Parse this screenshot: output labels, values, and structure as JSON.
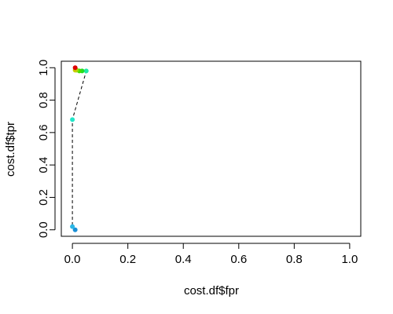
{
  "chart_data": {
    "type": "scatter",
    "xlabel": "cost.df$fpr",
    "ylabel": "cost.df$tpr",
    "xlim": [
      -0.04,
      1.04
    ],
    "ylim": [
      -0.04,
      1.04
    ],
    "xticks": [
      0.0,
      0.2,
      0.4,
      0.6,
      0.8,
      1.0
    ],
    "yticks": [
      0.0,
      0.2,
      0.4,
      0.6,
      0.8,
      1.0
    ],
    "x_tick_labels": [
      "0.0",
      "0.2",
      "0.4",
      "0.6",
      "0.8",
      "1.0"
    ],
    "y_tick_labels": [
      "0.0",
      "0.2",
      "0.4",
      "0.6",
      "0.8",
      "1.0"
    ],
    "grid": false,
    "line_style": "dashed",
    "points": [
      {
        "x": 0.01,
        "y": 0.0,
        "color": "#1a8fd6"
      },
      {
        "x": 0.0,
        "y": 0.02,
        "color": "#2bb7e6"
      },
      {
        "x": 0.0,
        "y": 0.68,
        "color": "#22e6c8"
      },
      {
        "x": 0.05,
        "y": 0.98,
        "color": "#1ee8a6"
      },
      {
        "x": 0.035,
        "y": 0.98,
        "color": "#22dd22"
      },
      {
        "x": 0.025,
        "y": 0.98,
        "color": "#44dd00"
      },
      {
        "x": 0.015,
        "y": 0.985,
        "color": "#88dd00"
      },
      {
        "x": 0.01,
        "y": 0.985,
        "color": "#c8cc00"
      },
      {
        "x": 0.01,
        "y": 1.0,
        "color": "#dd0000"
      }
    ]
  }
}
